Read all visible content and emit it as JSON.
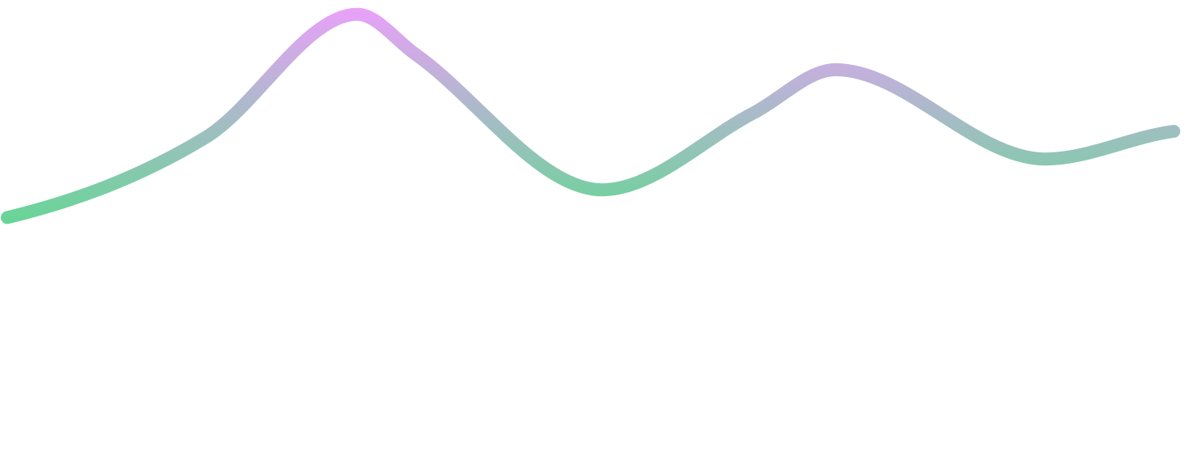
{
  "chart_data": {
    "type": "line",
    "curve": "smooth",
    "axes_visible": false,
    "grid": false,
    "legend": "none",
    "title": "",
    "xlabel": "",
    "ylabel": "",
    "xlim": [
      0,
      100
    ],
    "ylim": [
      0,
      100
    ],
    "series": [
      {
        "x": [
          0,
          17,
          30,
          35,
          51,
          64,
          71,
          89,
          100
        ],
        "y": [
          32,
          58,
          98,
          85,
          41,
          66,
          80,
          51,
          60
        ]
      }
    ],
    "gradient": {
      "direction": "vertical",
      "top_color": "#e9a1f9",
      "bottom_color": "#2eec6a"
    }
  }
}
